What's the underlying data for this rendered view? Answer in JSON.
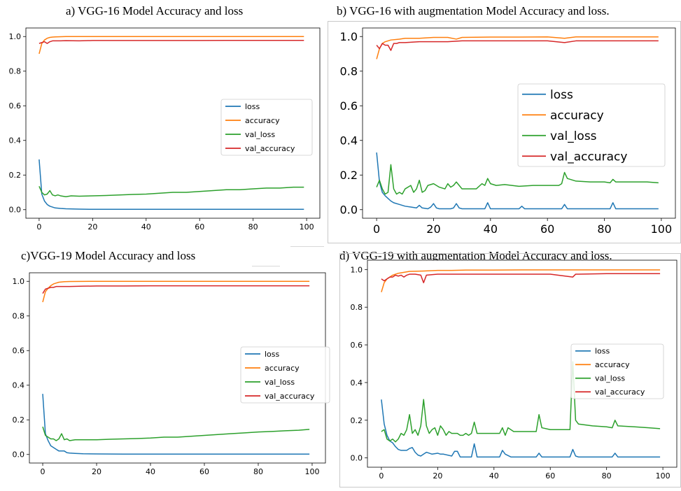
{
  "captions": {
    "a": "a)      VGG-16 Model Accuracy and loss",
    "b": "b) VGG-16 with augmentation Model Accuracy and loss.",
    "c": "c)VGG-19 Model Accuracy and loss",
    "d": "d) VGG-19 with augmentation Model Accuracy and loss."
  },
  "colors": {
    "loss": "#1f77b4",
    "accuracy": "#ff7f0e",
    "val_loss": "#2ca02c",
    "val_accuracy": "#d62728"
  },
  "chart_data": [
    {
      "type": "line",
      "title": "a)      VGG-16 Model Accuracy and loss",
      "xlim": [
        0,
        100
      ],
      "ylim": [
        0,
        1.0
      ],
      "xticks": [
        0,
        20,
        40,
        60,
        80,
        100
      ],
      "yticks": [
        0.0,
        0.2,
        0.4,
        0.6,
        0.8,
        1.0
      ],
      "legend": "center-right",
      "series": [
        {
          "name": "loss",
          "x": [
            0,
            1,
            2,
            3,
            4,
            5,
            6,
            8,
            10,
            15,
            20,
            30,
            40,
            60,
            80,
            99
          ],
          "values": [
            0.29,
            0.09,
            0.05,
            0.03,
            0.02,
            0.015,
            0.01,
            0.007,
            0.005,
            0.003,
            0.002,
            0.002,
            0.002,
            0.002,
            0.002,
            0.002
          ]
        },
        {
          "name": "accuracy",
          "x": [
            0,
            1,
            2,
            3,
            4,
            5,
            6,
            8,
            10,
            20,
            40,
            60,
            80,
            99
          ],
          "values": [
            0.9,
            0.96,
            0.98,
            0.99,
            0.995,
            0.997,
            0.998,
            0.999,
            1.0,
            1.0,
            1.0,
            1.0,
            1.0,
            1.0
          ]
        },
        {
          "name": "val_loss",
          "x": [
            0,
            1,
            2,
            3,
            4,
            5,
            6,
            7,
            8,
            10,
            12,
            15,
            20,
            25,
            30,
            35,
            40,
            45,
            50,
            55,
            60,
            65,
            70,
            75,
            80,
            85,
            90,
            95,
            99
          ],
          "values": [
            0.135,
            0.1,
            0.085,
            0.09,
            0.11,
            0.085,
            0.08,
            0.085,
            0.08,
            0.075,
            0.08,
            0.078,
            0.08,
            0.082,
            0.085,
            0.088,
            0.09,
            0.095,
            0.1,
            0.1,
            0.105,
            0.11,
            0.115,
            0.115,
            0.12,
            0.125,
            0.125,
            0.13,
            0.13
          ]
        },
        {
          "name": "val_accuracy",
          "x": [
            0,
            1,
            2,
            3,
            4,
            5,
            6,
            8,
            10,
            15,
            20,
            30,
            40,
            50,
            60,
            70,
            80,
            90,
            99
          ],
          "values": [
            0.96,
            0.965,
            0.97,
            0.96,
            0.97,
            0.975,
            0.975,
            0.975,
            0.976,
            0.975,
            0.977,
            0.977,
            0.977,
            0.977,
            0.977,
            0.978,
            0.978,
            0.978,
            0.978
          ]
        }
      ]
    },
    {
      "type": "line",
      "title": "b) VGG-16 with augmentation Model Accuracy and loss.",
      "xlim": [
        0,
        100
      ],
      "ylim": [
        0,
        1.0
      ],
      "xticks": [
        0,
        20,
        40,
        60,
        80,
        100
      ],
      "yticks": [
        0.0,
        0.2,
        0.4,
        0.6,
        0.8,
        1.0
      ],
      "legend": "center-right",
      "series": [
        {
          "name": "loss",
          "x": [
            0,
            1,
            2,
            3,
            4,
            5,
            6,
            8,
            10,
            12,
            14,
            15,
            16,
            18,
            19,
            20,
            21,
            22,
            26,
            27,
            28,
            29,
            30,
            35,
            38,
            39,
            40,
            45,
            50,
            51,
            52,
            55,
            60,
            65,
            66,
            67,
            70,
            75,
            80,
            82,
            83,
            84,
            90,
            99
          ],
          "values": [
            0.33,
            0.16,
            0.1,
            0.08,
            0.065,
            0.05,
            0.04,
            0.03,
            0.02,
            0.015,
            0.01,
            0.025,
            0.01,
            0.005,
            0.015,
            0.035,
            0.01,
            0.005,
            0.005,
            0.01,
            0.035,
            0.01,
            0.005,
            0.005,
            0.005,
            0.04,
            0.005,
            0.005,
            0.005,
            0.02,
            0.005,
            0.005,
            0.005,
            0.005,
            0.03,
            0.005,
            0.005,
            0.005,
            0.005,
            0.005,
            0.04,
            0.005,
            0.005,
            0.005
          ]
        },
        {
          "name": "accuracy",
          "x": [
            0,
            1,
            2,
            3,
            5,
            8,
            10,
            15,
            20,
            25,
            28,
            30,
            40,
            50,
            60,
            66,
            70,
            80,
            90,
            99
          ],
          "values": [
            0.87,
            0.93,
            0.96,
            0.97,
            0.98,
            0.985,
            0.99,
            0.99,
            0.995,
            0.995,
            0.985,
            0.995,
            0.997,
            0.997,
            0.998,
            0.99,
            0.998,
            0.998,
            0.998,
            0.998
          ]
        },
        {
          "name": "val_loss",
          "x": [
            0,
            1,
            2,
            3,
            4,
            5,
            6,
            7,
            8,
            9,
            10,
            12,
            13,
            14,
            15,
            16,
            17,
            18,
            20,
            21,
            22,
            24,
            25,
            26,
            27,
            28,
            29,
            30,
            33,
            35,
            37,
            38,
            39,
            40,
            42,
            45,
            50,
            55,
            60,
            64,
            65,
            66,
            67,
            70,
            75,
            80,
            82,
            83,
            84,
            90,
            95,
            99
          ],
          "values": [
            0.13,
            0.17,
            0.12,
            0.09,
            0.1,
            0.26,
            0.12,
            0.09,
            0.1,
            0.09,
            0.12,
            0.14,
            0.1,
            0.12,
            0.17,
            0.1,
            0.11,
            0.14,
            0.15,
            0.14,
            0.13,
            0.12,
            0.15,
            0.13,
            0.14,
            0.16,
            0.14,
            0.12,
            0.12,
            0.12,
            0.15,
            0.14,
            0.18,
            0.15,
            0.14,
            0.145,
            0.135,
            0.14,
            0.14,
            0.14,
            0.15,
            0.215,
            0.18,
            0.165,
            0.16,
            0.16,
            0.155,
            0.175,
            0.16,
            0.16,
            0.16,
            0.155
          ]
        },
        {
          "name": "val_accuracy",
          "x": [
            0,
            1,
            2,
            3,
            4,
            5,
            6,
            7,
            8,
            10,
            15,
            20,
            25,
            30,
            40,
            50,
            60,
            66,
            70,
            80,
            90,
            99
          ],
          "values": [
            0.95,
            0.93,
            0.96,
            0.95,
            0.95,
            0.92,
            0.96,
            0.96,
            0.965,
            0.965,
            0.97,
            0.97,
            0.97,
            0.975,
            0.975,
            0.975,
            0.975,
            0.965,
            0.975,
            0.975,
            0.975,
            0.975
          ]
        }
      ]
    },
    {
      "type": "line",
      "title": "c)VGG-19 Model Accuracy and loss",
      "xlim": [
        0,
        100
      ],
      "ylim": [
        0,
        1.0
      ],
      "xticks": [
        0,
        20,
        40,
        60,
        80,
        100
      ],
      "yticks": [
        0.0,
        0.2,
        0.4,
        0.6,
        0.8,
        1.0
      ],
      "legend": "center-right",
      "series": [
        {
          "name": "loss",
          "x": [
            0,
            1,
            2,
            3,
            4,
            5,
            6,
            7,
            8,
            9,
            10,
            12,
            15,
            20,
            30,
            40,
            60,
            80,
            99
          ],
          "values": [
            0.35,
            0.12,
            0.08,
            0.05,
            0.04,
            0.03,
            0.02,
            0.02,
            0.02,
            0.01,
            0.008,
            0.006,
            0.004,
            0.003,
            0.002,
            0.002,
            0.002,
            0.002,
            0.002
          ]
        },
        {
          "name": "accuracy",
          "x": [
            0,
            1,
            2,
            3,
            4,
            5,
            6,
            8,
            10,
            20,
            40,
            60,
            80,
            99
          ],
          "values": [
            0.88,
            0.94,
            0.96,
            0.975,
            0.985,
            0.99,
            0.995,
            0.998,
            0.999,
            1.0,
            1.0,
            1.0,
            1.0,
            1.0
          ]
        },
        {
          "name": "val_loss",
          "x": [
            0,
            1,
            2,
            3,
            4,
            5,
            6,
            7,
            8,
            9,
            10,
            12,
            15,
            20,
            25,
            30,
            35,
            40,
            45,
            50,
            55,
            60,
            65,
            70,
            75,
            80,
            85,
            90,
            95,
            99
          ],
          "values": [
            0.16,
            0.11,
            0.1,
            0.09,
            0.09,
            0.08,
            0.09,
            0.12,
            0.085,
            0.09,
            0.08,
            0.085,
            0.085,
            0.085,
            0.088,
            0.09,
            0.092,
            0.095,
            0.1,
            0.1,
            0.105,
            0.11,
            0.115,
            0.12,
            0.125,
            0.13,
            0.133,
            0.137,
            0.14,
            0.145
          ]
        },
        {
          "name": "val_accuracy",
          "x": [
            0,
            1,
            2,
            3,
            4,
            5,
            6,
            8,
            10,
            15,
            20,
            30,
            40,
            50,
            60,
            70,
            80,
            90,
            99
          ],
          "values": [
            0.93,
            0.955,
            0.96,
            0.965,
            0.965,
            0.97,
            0.97,
            0.97,
            0.97,
            0.972,
            0.973,
            0.973,
            0.974,
            0.974,
            0.974,
            0.974,
            0.974,
            0.974,
            0.974
          ]
        }
      ]
    },
    {
      "type": "line",
      "title": "d) VGG-19 with augmentation Model Accuracy and loss.",
      "xlim": [
        0,
        100
      ],
      "ylim": [
        0,
        1.0
      ],
      "xticks": [
        0,
        20,
        40,
        60,
        80,
        100
      ],
      "yticks": [
        0.0,
        0.2,
        0.4,
        0.6,
        0.8,
        1.0
      ],
      "legend": "center-right",
      "series": [
        {
          "name": "loss",
          "x": [
            0,
            1,
            2,
            3,
            4,
            5,
            6,
            7,
            8,
            9,
            10,
            11,
            12,
            13,
            14,
            15,
            16,
            18,
            20,
            21,
            22,
            25,
            26,
            27,
            28,
            30,
            32,
            33,
            34,
            36,
            40,
            42,
            43,
            44,
            46,
            50,
            55,
            56,
            57,
            60,
            65,
            67,
            68,
            69,
            70,
            80,
            82,
            83,
            84,
            90,
            99
          ],
          "values": [
            0.31,
            0.18,
            0.12,
            0.09,
            0.08,
            0.06,
            0.045,
            0.04,
            0.04,
            0.04,
            0.05,
            0.055,
            0.03,
            0.015,
            0.01,
            0.02,
            0.03,
            0.02,
            0.025,
            0.02,
            0.02,
            0.01,
            0.035,
            0.035,
            0.005,
            0.005,
            0.005,
            0.075,
            0.005,
            0.005,
            0.005,
            0.005,
            0.04,
            0.02,
            0.005,
            0.005,
            0.005,
            0.025,
            0.005,
            0.005,
            0.005,
            0.005,
            0.045,
            0.01,
            0.005,
            0.005,
            0.005,
            0.025,
            0.005,
            0.005,
            0.005
          ]
        },
        {
          "name": "accuracy",
          "x": [
            0,
            1,
            2,
            3,
            4,
            5,
            6,
            8,
            10,
            15,
            20,
            25,
            30,
            40,
            50,
            60,
            70,
            80,
            90,
            99
          ],
          "values": [
            0.88,
            0.93,
            0.95,
            0.96,
            0.97,
            0.975,
            0.98,
            0.985,
            0.99,
            0.992,
            0.995,
            0.995,
            0.997,
            0.997,
            0.998,
            0.998,
            0.998,
            0.998,
            0.998,
            0.998
          ]
        },
        {
          "name": "val_loss",
          "x": [
            0,
            1,
            2,
            3,
            4,
            5,
            6,
            7,
            8,
            9,
            10,
            11,
            12,
            13,
            14,
            15,
            16,
            17,
            18,
            19,
            20,
            21,
            22,
            23,
            24,
            25,
            27,
            28,
            29,
            30,
            31,
            32,
            33,
            34,
            35,
            38,
            40,
            42,
            43,
            44,
            45,
            47,
            50,
            55,
            56,
            57,
            60,
            63,
            65,
            66,
            67,
            68,
            69,
            70,
            75,
            80,
            82,
            83,
            84,
            90,
            95,
            99
          ],
          "values": [
            0.14,
            0.15,
            0.1,
            0.09,
            0.1,
            0.085,
            0.1,
            0.13,
            0.12,
            0.15,
            0.23,
            0.13,
            0.15,
            0.12,
            0.17,
            0.31,
            0.17,
            0.13,
            0.15,
            0.16,
            0.12,
            0.17,
            0.15,
            0.12,
            0.14,
            0.13,
            0.13,
            0.12,
            0.12,
            0.13,
            0.12,
            0.13,
            0.19,
            0.13,
            0.13,
            0.13,
            0.13,
            0.13,
            0.16,
            0.12,
            0.16,
            0.14,
            0.14,
            0.14,
            0.23,
            0.16,
            0.15,
            0.15,
            0.15,
            0.15,
            0.15,
            0.51,
            0.2,
            0.18,
            0.17,
            0.165,
            0.16,
            0.2,
            0.17,
            0.165,
            0.16,
            0.155
          ]
        },
        {
          "name": "val_accuracy",
          "x": [
            0,
            1,
            2,
            3,
            4,
            5,
            6,
            7,
            8,
            9,
            10,
            12,
            14,
            15,
            16,
            20,
            25,
            30,
            40,
            50,
            60,
            68,
            69,
            70,
            80,
            90,
            99
          ],
          "values": [
            0.95,
            0.94,
            0.95,
            0.96,
            0.96,
            0.97,
            0.965,
            0.97,
            0.96,
            0.97,
            0.975,
            0.975,
            0.97,
            0.93,
            0.97,
            0.975,
            0.975,
            0.975,
            0.975,
            0.975,
            0.975,
            0.96,
            0.975,
            0.975,
            0.978,
            0.978,
            0.978
          ]
        }
      ]
    }
  ]
}
